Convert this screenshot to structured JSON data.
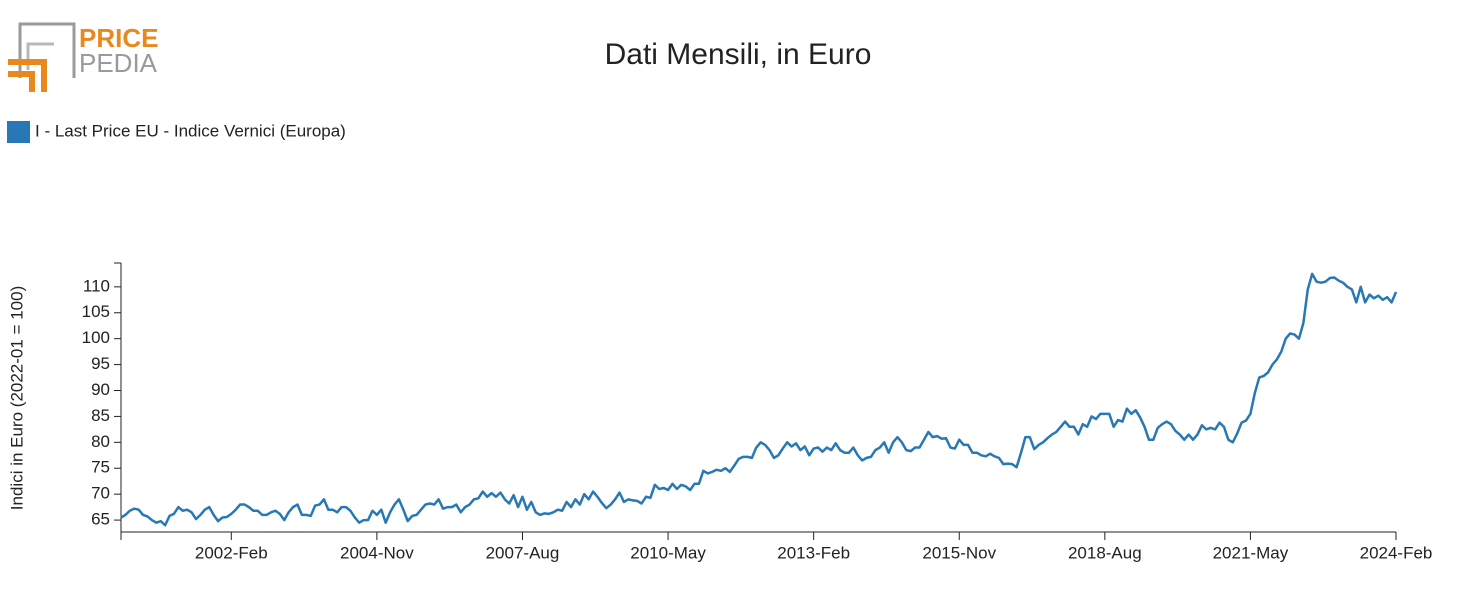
{
  "logo": {
    "line1": "PRICE",
    "line2": "PEDIA"
  },
  "chart_data": {
    "type": "line",
    "title": "Dati Mensili, in Euro",
    "ylabel": "Indici in Euro (2022-01 = 100)",
    "x": [
      "2000-01",
      "2000-02",
      "2000-03",
      "2000-04",
      "2000-05",
      "2000-06",
      "2000-07",
      "2000-08",
      "2000-09",
      "2000-10",
      "2000-11",
      "2000-12",
      "2001-01",
      "2001-02",
      "2001-03",
      "2001-04",
      "2001-05",
      "2001-06",
      "2001-07",
      "2001-08",
      "2001-09",
      "2001-10",
      "2001-11",
      "2001-12",
      "2002-01",
      "2002-02",
      "2002-03",
      "2002-04",
      "2002-05",
      "2002-06",
      "2002-07",
      "2002-08",
      "2002-09",
      "2002-10",
      "2002-11",
      "2002-12",
      "2003-01",
      "2003-02",
      "2003-03",
      "2003-04",
      "2003-05",
      "2003-06",
      "2003-07",
      "2003-08",
      "2003-09",
      "2003-10",
      "2003-11",
      "2003-12",
      "2004-01",
      "2004-02",
      "2004-03",
      "2004-04",
      "2004-05",
      "2004-06",
      "2004-07",
      "2004-08",
      "2004-09",
      "2004-10",
      "2004-11",
      "2004-12",
      "2005-01",
      "2005-02",
      "2005-03",
      "2005-04",
      "2005-05",
      "2005-06",
      "2005-07",
      "2005-08",
      "2005-09",
      "2005-10",
      "2005-11",
      "2005-12",
      "2006-01",
      "2006-02",
      "2006-03",
      "2006-04",
      "2006-05",
      "2006-06",
      "2006-07",
      "2006-08",
      "2006-09",
      "2006-10",
      "2006-11",
      "2006-12",
      "2007-01",
      "2007-02",
      "2007-03",
      "2007-04",
      "2007-05",
      "2007-06",
      "2007-07",
      "2007-08",
      "2007-09",
      "2007-10",
      "2007-11",
      "2007-12",
      "2008-01",
      "2008-02",
      "2008-03",
      "2008-04",
      "2008-05",
      "2008-06",
      "2008-07",
      "2008-08",
      "2008-09",
      "2008-10",
      "2008-11",
      "2008-12",
      "2009-01",
      "2009-02",
      "2009-03",
      "2009-04",
      "2009-05",
      "2009-06",
      "2009-07",
      "2009-08",
      "2009-09",
      "2009-10",
      "2009-11",
      "2009-12",
      "2010-01",
      "2010-02",
      "2010-03",
      "2010-04",
      "2010-05",
      "2010-06",
      "2010-07",
      "2010-08",
      "2010-09",
      "2010-10",
      "2010-11",
      "2010-12",
      "2011-01",
      "2011-02",
      "2011-03",
      "2011-04",
      "2011-05",
      "2011-06",
      "2011-07",
      "2011-08",
      "2011-09",
      "2011-10",
      "2011-11",
      "2011-12",
      "2012-01",
      "2012-02",
      "2012-03",
      "2012-04",
      "2012-05",
      "2012-06",
      "2012-07",
      "2012-08",
      "2012-09",
      "2012-10",
      "2012-11",
      "2012-12",
      "2013-01",
      "2013-02",
      "2013-03",
      "2013-04",
      "2013-05",
      "2013-06",
      "2013-07",
      "2013-08",
      "2013-09",
      "2013-10",
      "2013-11",
      "2013-12",
      "2014-01",
      "2014-02",
      "2014-03",
      "2014-04",
      "2014-05",
      "2014-06",
      "2014-07",
      "2014-08",
      "2014-09",
      "2014-10",
      "2014-11",
      "2014-12",
      "2015-01",
      "2015-02",
      "2015-03",
      "2015-04",
      "2015-05",
      "2015-06",
      "2015-07",
      "2015-08",
      "2015-09",
      "2015-10",
      "2015-11",
      "2015-12",
      "2016-01",
      "2016-02",
      "2016-03",
      "2016-04",
      "2016-05",
      "2016-06",
      "2016-07",
      "2016-08",
      "2016-09",
      "2016-10",
      "2016-11",
      "2016-12",
      "2017-01",
      "2017-02",
      "2017-03",
      "2017-04",
      "2017-05",
      "2017-06",
      "2017-07",
      "2017-08",
      "2017-09",
      "2017-10",
      "2017-11",
      "2017-12",
      "2018-01",
      "2018-02",
      "2018-03",
      "2018-04",
      "2018-05",
      "2018-06",
      "2018-07",
      "2018-08",
      "2018-09",
      "2018-10",
      "2018-11",
      "2018-12",
      "2019-01",
      "2019-02",
      "2019-03",
      "2019-04",
      "2019-05",
      "2019-06",
      "2019-07",
      "2019-08",
      "2019-09",
      "2019-10",
      "2019-11",
      "2019-12",
      "2020-01",
      "2020-02",
      "2020-03",
      "2020-04",
      "2020-05",
      "2020-06",
      "2020-07",
      "2020-08",
      "2020-09",
      "2020-10",
      "2020-11",
      "2020-12",
      "2021-01",
      "2021-02",
      "2021-03",
      "2021-04",
      "2021-05",
      "2021-06",
      "2021-07",
      "2021-08",
      "2021-09",
      "2021-10",
      "2021-11",
      "2021-12",
      "2022-01",
      "2022-02",
      "2022-03",
      "2022-04",
      "2022-05",
      "2022-06",
      "2022-07",
      "2022-08",
      "2022-09",
      "2022-10",
      "2022-11",
      "2022-12",
      "2023-01",
      "2023-02",
      "2023-03",
      "2023-04",
      "2023-05",
      "2023-06",
      "2023-07",
      "2023-08",
      "2023-09",
      "2023-10",
      "2023-11",
      "2023-12",
      "2024-01",
      "2024-02"
    ],
    "series": [
      {
        "name": "I - Last Price EU - Indice Vernici (Europa)",
        "color": "#2878b5",
        "values": [
          65.5,
          66,
          66.8,
          67.2,
          67,
          66,
          65.7,
          65,
          64.5,
          64.8,
          64,
          65.8,
          66.2,
          67.5,
          66.8,
          67,
          66.5,
          65.2,
          66,
          67,
          67.5,
          66,
          64.8,
          65.5,
          65.6,
          66.2,
          67,
          68,
          68,
          67.5,
          66.8,
          66.8,
          66,
          66,
          66.5,
          66.8,
          66.2,
          65,
          66.5,
          67.5,
          68,
          66,
          66,
          65.8,
          67.8,
          68,
          69,
          67,
          67,
          66.5,
          67.5,
          67.5,
          66.8,
          65.5,
          64.5,
          65,
          65,
          66.8,
          66,
          67,
          64.5,
          66.5,
          68,
          69,
          67,
          64.8,
          65.8,
          66,
          67,
          68,
          68.2,
          68,
          69,
          67.2,
          67.5,
          67.5,
          68,
          66.5,
          67.5,
          68,
          69,
          69.2,
          70.5,
          69.5,
          70.2,
          69.5,
          70.3,
          69,
          68.2,
          69.8,
          67.5,
          69.5,
          67,
          68.5,
          66.5,
          66,
          66.3,
          66.2,
          66.5,
          67,
          66.8,
          68.5,
          67.5,
          69,
          68,
          70,
          69,
          70.5,
          69.5,
          68.3,
          67.3,
          68,
          69,
          70.3,
          68.5,
          69,
          68.8,
          68.7,
          68.2,
          69.5,
          69.3,
          71.8,
          71,
          71.2,
          70.8,
          72,
          71,
          71.8,
          71.5,
          70.8,
          72,
          72,
          74.5,
          74,
          74.3,
          74.7,
          74.5,
          75,
          74.3,
          75.5,
          76.8,
          77.2,
          77.2,
          77,
          79,
          80,
          79.5,
          78.5,
          77,
          77.5,
          78.8,
          80,
          79.2,
          79.8,
          78.5,
          79.2,
          77.5,
          78.8,
          79,
          78.2,
          79,
          78.5,
          79.8,
          78.5,
          78,
          78,
          79,
          77.5,
          76.5,
          77,
          77.2,
          78.5,
          79,
          80,
          78,
          80,
          81,
          80,
          78.5,
          78.3,
          79,
          79,
          80.5,
          82,
          81,
          81.2,
          80.7,
          80.8,
          79,
          78.8,
          80.5,
          79.5,
          79.5,
          78,
          78,
          77.5,
          77.3,
          77.8,
          77.3,
          77,
          75.8,
          75.9,
          75.8,
          75.2,
          78,
          81,
          81,
          78.7,
          79.5,
          80,
          80.8,
          81.5,
          82,
          83,
          84,
          83,
          83,
          81.5,
          83.5,
          83,
          85,
          84.5,
          85.5,
          85.5,
          85.5,
          83,
          84.3,
          84,
          86.5,
          85.5,
          86.2,
          84.8,
          83,
          80.5,
          80.5,
          82.8,
          83.5,
          84,
          83.5,
          82.2,
          81.5,
          80.5,
          81.5,
          80.5,
          81.5,
          83.3,
          82.5,
          82.8,
          82.5,
          83.8,
          83,
          80.5,
          80,
          81.7,
          83.8,
          84.2,
          85.5,
          89.5,
          92.5,
          92.8,
          93.5,
          95,
          96,
          97.5,
          100,
          101,
          100.8,
          100,
          103,
          109.5,
          112.5,
          111,
          110.8,
          111,
          111.7,
          111.8,
          111.2,
          110.8,
          110,
          109.5,
          107,
          110,
          107,
          108.5,
          107.8,
          108.3,
          107.5,
          108,
          107,
          109
        ]
      }
    ],
    "xlim": [
      "2000-01",
      "2024-02"
    ],
    "xticks": [
      {
        "value": "2002-02",
        "label": "2002-Feb"
      },
      {
        "value": "2004-11",
        "label": "2004-Nov"
      },
      {
        "value": "2007-08",
        "label": "2007-Aug"
      },
      {
        "value": "2010-05",
        "label": "2010-May"
      },
      {
        "value": "2013-02",
        "label": "2013-Feb"
      },
      {
        "value": "2015-11",
        "label": "2015-Nov"
      },
      {
        "value": "2018-08",
        "label": "2018-Aug"
      },
      {
        "value": "2021-05",
        "label": "2021-May"
      },
      {
        "value": "2024-02",
        "label": "2024-Feb"
      }
    ],
    "ylim": [
      62.7,
      114.6
    ],
    "yticks": [
      65,
      70,
      75,
      80,
      85,
      90,
      95,
      100,
      105,
      110
    ],
    "legend": "top-left",
    "grid": false
  }
}
